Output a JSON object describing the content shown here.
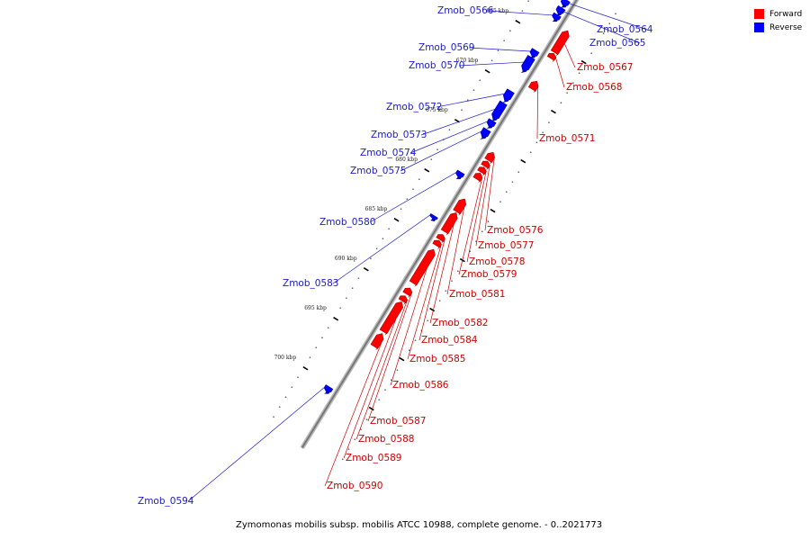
{
  "caption": "Zymomonas mobilis subsp. mobilis ATCC 10988, complete genome. - 0..2021773",
  "legend": [
    {
      "label": "Forward",
      "color": "#ff0000"
    },
    {
      "label": "Reverse",
      "color": "#0000ff"
    }
  ],
  "colors": {
    "forward": "#ff0000",
    "reverse": "#0000ff",
    "backbone": "#999999",
    "tick": "#000000"
  },
  "axis_ticks": [
    {
      "label": "665 kbp",
      "pos": 665
    },
    {
      "label": "670 kbp",
      "pos": 670
    },
    {
      "label": "675 kbp",
      "pos": 675
    },
    {
      "label": "680 kbp",
      "pos": 680
    },
    {
      "label": "685 kbp",
      "pos": 685
    },
    {
      "label": "690 kbp",
      "pos": 690
    },
    {
      "label": "695 kbp",
      "pos": 695
    },
    {
      "label": "700 kbp",
      "pos": 700
    }
  ],
  "genes": [
    {
      "name": "Zmob_0564",
      "strand": "reverse",
      "start": 661.2,
      "end": 661.8
    },
    {
      "name": "Zmob_0565",
      "strand": "reverse",
      "start": 662.0,
      "end": 662.6
    },
    {
      "name": "Zmob_0566",
      "strand": "reverse",
      "start": 662.7,
      "end": 663.2
    },
    {
      "name": "Zmob_0567",
      "strand": "forward",
      "start": 663.4,
      "end": 665.6
    },
    {
      "name": "Zmob_0568",
      "strand": "forward",
      "start": 665.7,
      "end": 666.2
    },
    {
      "name": "Zmob_0569",
      "strand": "reverse",
      "start": 666.3,
      "end": 666.9
    },
    {
      "name": "Zmob_0570",
      "strand": "reverse",
      "start": 667.0,
      "end": 668.4
    },
    {
      "name": "Zmob_0571",
      "strand": "forward",
      "start": 668.5,
      "end": 669.3
    },
    {
      "name": "Zmob_0572",
      "strand": "reverse",
      "start": 670.4,
      "end": 671.4
    },
    {
      "name": "Zmob_0573",
      "strand": "reverse",
      "start": 671.6,
      "end": 673.3
    },
    {
      "name": "Zmob_0574",
      "strand": "reverse",
      "start": 673.4,
      "end": 674.0
    },
    {
      "name": "Zmob_0575",
      "strand": "reverse",
      "start": 674.3,
      "end": 675.1
    },
    {
      "name": "Zmob_0576",
      "strand": "forward",
      "start": 675.7,
      "end": 676.5
    },
    {
      "name": "Zmob_0577",
      "strand": "forward",
      "start": 676.6,
      "end": 677.1
    },
    {
      "name": "Zmob_0578",
      "strand": "forward",
      "start": 677.2,
      "end": 677.7
    },
    {
      "name": "Zmob_0579",
      "strand": "forward",
      "start": 677.8,
      "end": 678.4
    },
    {
      "name": "Zmob_0580",
      "strand": "reverse",
      "start": 678.6,
      "end": 679.1
    },
    {
      "name": "Zmob_0581",
      "strand": "forward",
      "start": 680.4,
      "end": 681.7
    },
    {
      "name": "Zmob_0582",
      "strand": "forward",
      "start": 681.8,
      "end": 683.7
    },
    {
      "name": "Zmob_0583",
      "strand": "reverse",
      "start": 683.0,
      "end": 683.3
    },
    {
      "name": "Zmob_0584",
      "strand": "forward",
      "start": 684.0,
      "end": 684.5
    },
    {
      "name": "Zmob_0585",
      "strand": "forward",
      "start": 684.6,
      "end": 685.1
    },
    {
      "name": "Zmob_0586",
      "strand": "forward",
      "start": 685.5,
      "end": 688.9
    },
    {
      "name": "Zmob_0587",
      "strand": "forward",
      "start": 689.4,
      "end": 690.0
    },
    {
      "name": "Zmob_0588",
      "strand": "forward",
      "start": 690.2,
      "end": 690.7
    },
    {
      "name": "Zmob_0589",
      "strand": "forward",
      "start": 690.8,
      "end": 693.8
    },
    {
      "name": "Zmob_0590",
      "strand": "forward",
      "start": 694.0,
      "end": 695.3
    },
    {
      "name": "Zmob_0594",
      "strand": "reverse",
      "start": 700.3,
      "end": 700.8
    }
  ]
}
